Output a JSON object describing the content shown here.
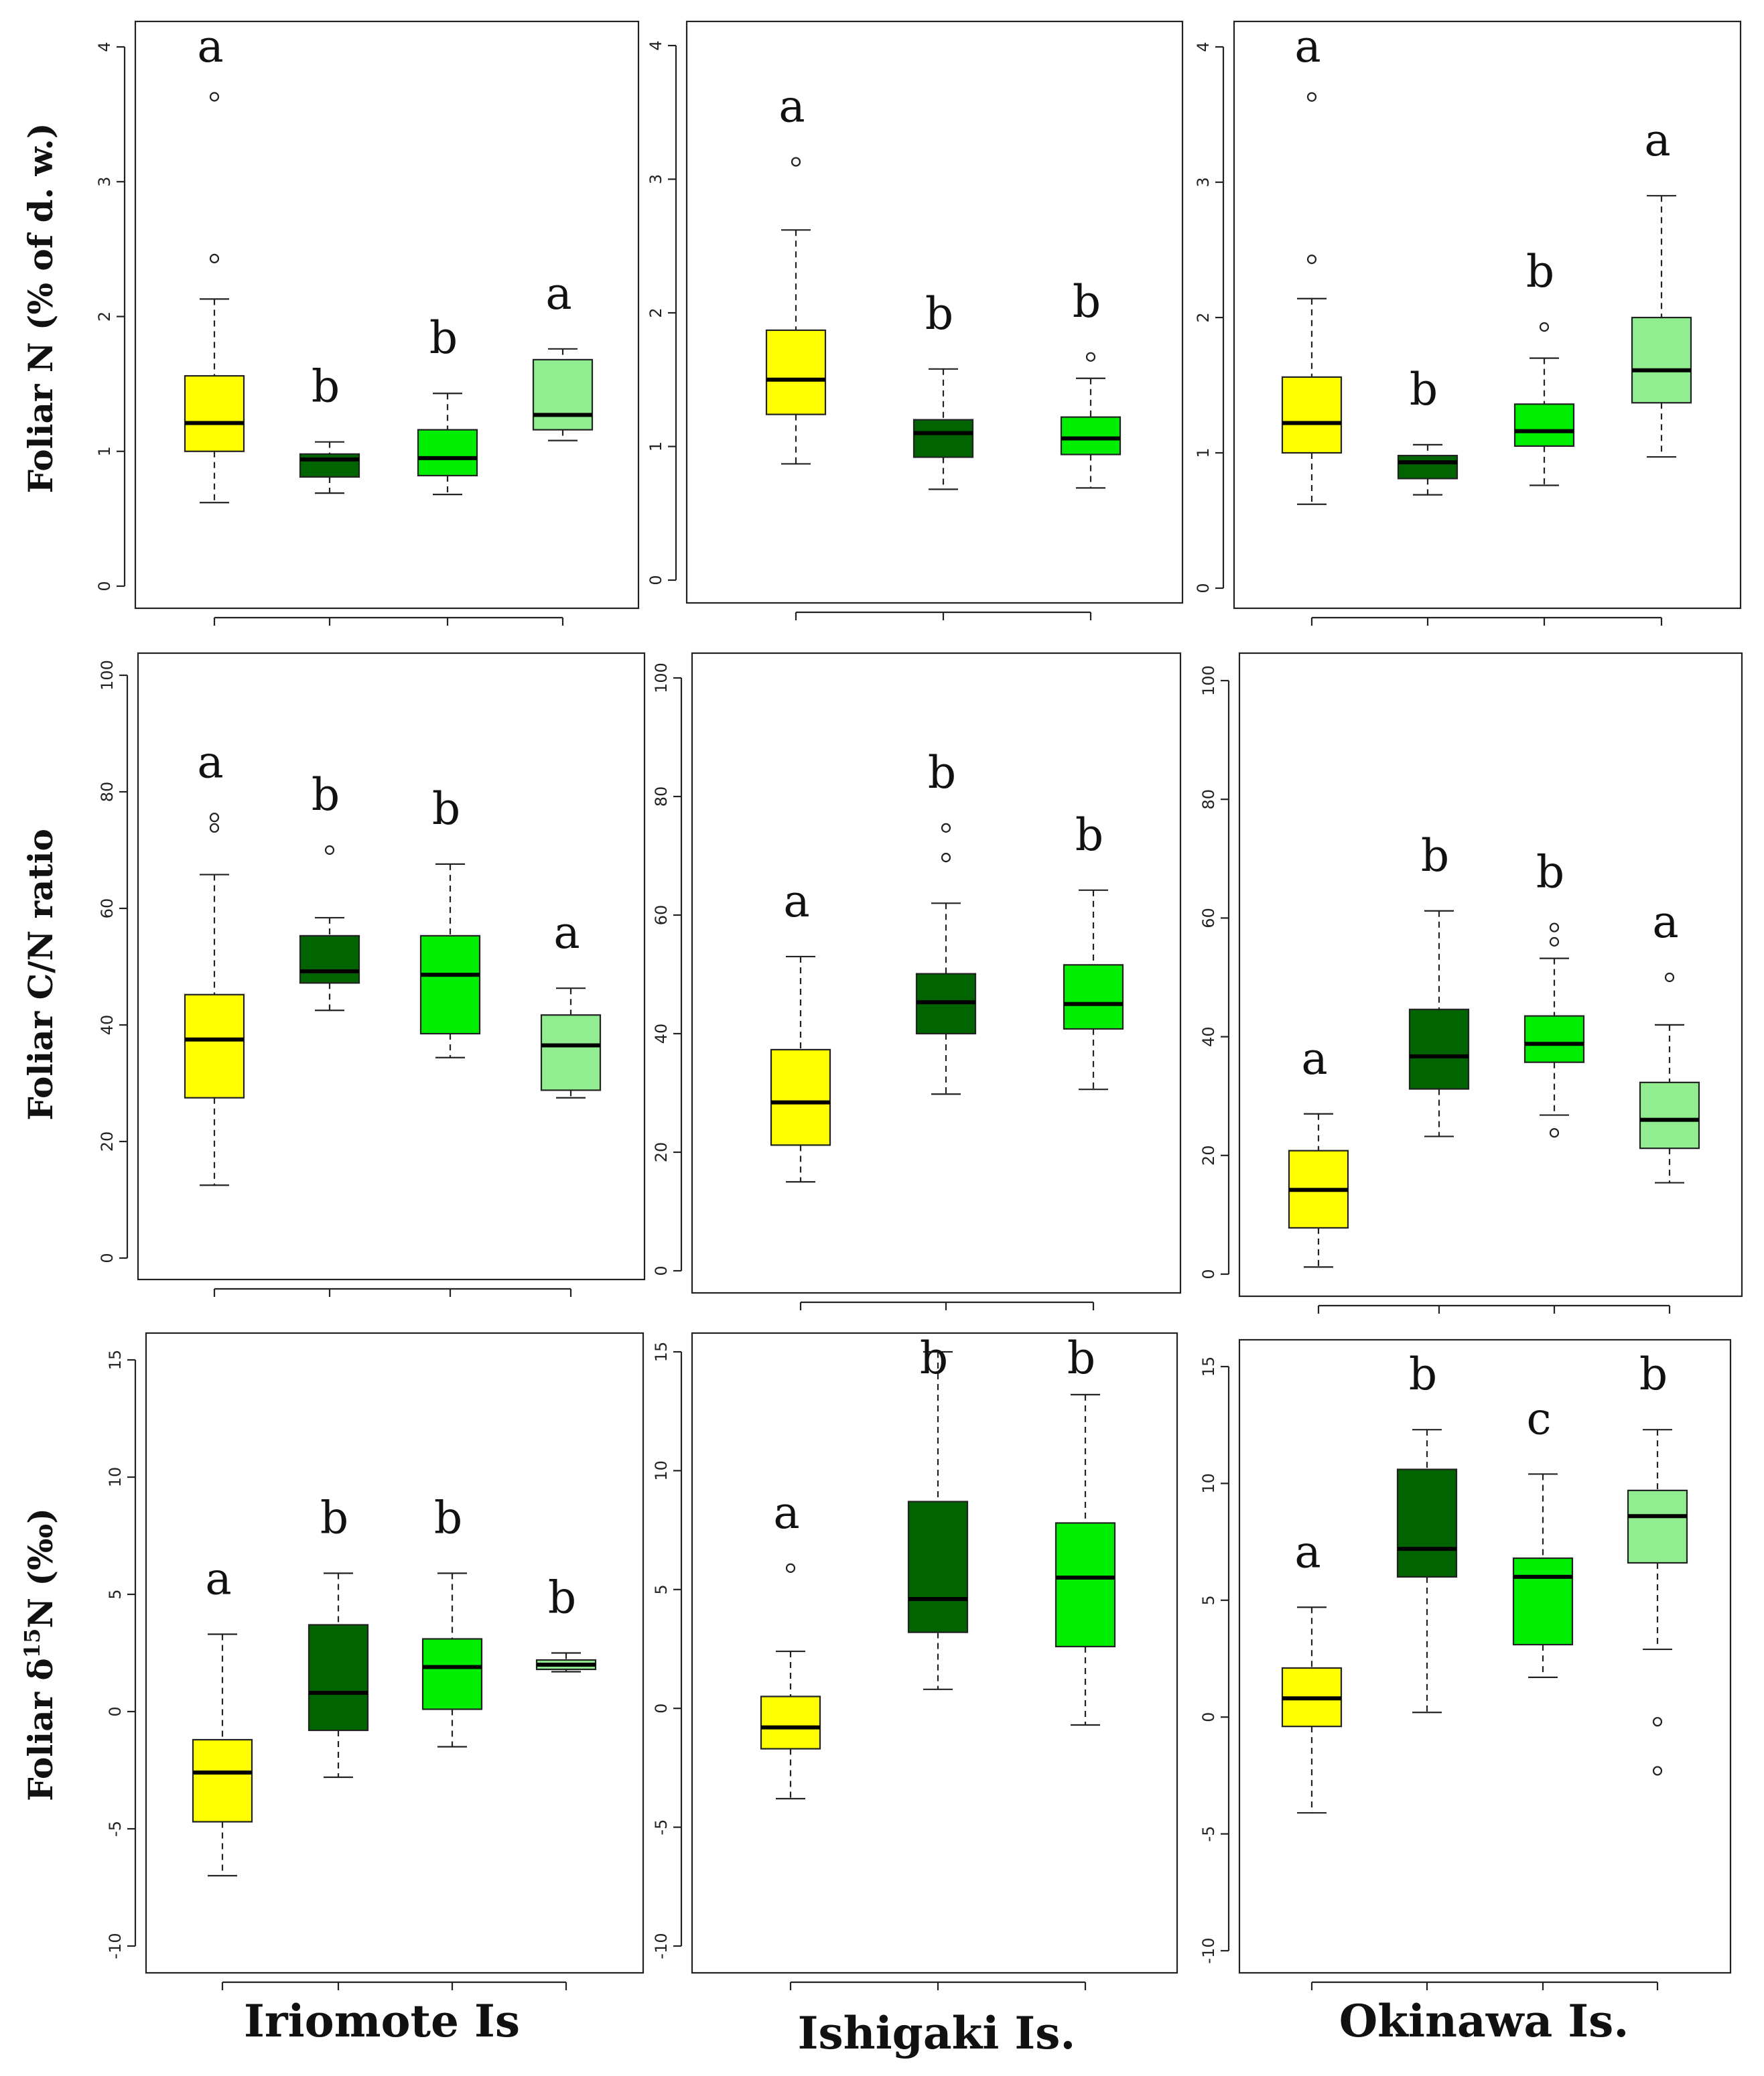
{
  "colors": {
    "yellow": "#ffff00",
    "dark_green": "#006400",
    "bright_green": "#00ee00",
    "light_green": "#90ee90"
  },
  "row_labels": [
    "Foliar N (% of d. w.)",
    "Foliar C/N ratio",
    "Foliar δ15N (‰)"
  ],
  "column_labels": [
    "Iriomote Is",
    "Ishigaki Is.",
    "Okinawa Is."
  ],
  "chart_data": [
    {
      "type": "box",
      "row": 0,
      "col": 0,
      "ylim": [
        0,
        4
      ],
      "yticks": [
        0,
        1,
        2,
        3,
        4
      ],
      "boxes": [
        {
          "color": "yellow",
          "min": 0.62,
          "q1": 1.0,
          "median": 1.21,
          "q3": 1.56,
          "max": 2.13,
          "outliers": [
            2.43,
            3.63
          ],
          "letter": "a"
        },
        {
          "color": "dark_green",
          "min": 0.69,
          "q1": 0.81,
          "median": 0.94,
          "q3": 0.98,
          "max": 1.07,
          "outliers": [],
          "letter": "b"
        },
        {
          "color": "bright_green",
          "min": 0.68,
          "q1": 0.82,
          "median": 0.95,
          "q3": 1.16,
          "max": 1.43,
          "outliers": [],
          "letter": "b"
        },
        {
          "color": "light_green",
          "min": 1.08,
          "q1": 1.16,
          "median": 1.27,
          "q3": 1.68,
          "max": 1.76,
          "outliers": [],
          "letter": "a"
        }
      ]
    },
    {
      "type": "box",
      "row": 0,
      "col": 1,
      "ylim": [
        0,
        4
      ],
      "yticks": [
        0,
        1,
        2,
        3,
        4
      ],
      "boxes": [
        {
          "color": "yellow",
          "min": 0.87,
          "q1": 1.24,
          "median": 1.5,
          "q3": 1.87,
          "max": 2.62,
          "outliers": [
            3.13
          ],
          "letter": "a"
        },
        {
          "color": "dark_green",
          "min": 0.68,
          "q1": 0.92,
          "median": 1.1,
          "q3": 1.2,
          "max": 1.58,
          "outliers": [],
          "letter": "b"
        },
        {
          "color": "bright_green",
          "min": 0.69,
          "q1": 0.94,
          "median": 1.06,
          "q3": 1.22,
          "max": 1.51,
          "outliers": [
            1.67
          ],
          "letter": "b"
        }
      ]
    },
    {
      "type": "box",
      "row": 0,
      "col": 2,
      "ylim": [
        0,
        4
      ],
      "yticks": [
        0,
        1,
        2,
        3,
        4
      ],
      "boxes": [
        {
          "color": "yellow",
          "min": 0.62,
          "q1": 1.0,
          "median": 1.22,
          "q3": 1.56,
          "max": 2.14,
          "outliers": [
            2.43,
            3.63
          ],
          "letter": "a"
        },
        {
          "color": "dark_green",
          "min": 0.69,
          "q1": 0.81,
          "median": 0.93,
          "q3": 0.98,
          "max": 1.06,
          "outliers": [],
          "letter": "b"
        },
        {
          "color": "bright_green",
          "min": 0.76,
          "q1": 1.05,
          "median": 1.16,
          "q3": 1.36,
          "max": 1.7,
          "outliers": [
            1.93
          ],
          "letter": "b"
        },
        {
          "color": "light_green",
          "min": 0.97,
          "q1": 1.37,
          "median": 1.61,
          "q3": 2.0,
          "max": 2.9,
          "outliers": [],
          "letter": "a"
        }
      ]
    },
    {
      "type": "box",
      "row": 1,
      "col": 0,
      "ylim": [
        0,
        100
      ],
      "yticks": [
        0,
        20,
        40,
        60,
        80,
        100
      ],
      "boxes": [
        {
          "color": "yellow",
          "min": 12.5,
          "q1": 27.5,
          "median": 37.5,
          "q3": 45.2,
          "max": 65.8,
          "outliers": [
            73.8,
            75.6
          ],
          "letter": "a"
        },
        {
          "color": "dark_green",
          "min": 42.5,
          "q1": 47.2,
          "median": 49.2,
          "q3": 55.3,
          "max": 58.4,
          "outliers": [
            70.0
          ],
          "letter": "b"
        },
        {
          "color": "bright_green",
          "min": 34.4,
          "q1": 38.5,
          "median": 48.6,
          "q3": 55.3,
          "max": 67.6,
          "outliers": [],
          "letter": "b"
        },
        {
          "color": "light_green",
          "min": 27.5,
          "q1": 28.8,
          "median": 36.5,
          "q3": 41.7,
          "max": 46.3,
          "outliers": [],
          "letter": "a"
        }
      ]
    },
    {
      "type": "box",
      "row": 1,
      "col": 1,
      "ylim": [
        0,
        100
      ],
      "yticks": [
        0,
        20,
        40,
        60,
        80,
        100
      ],
      "boxes": [
        {
          "color": "yellow",
          "min": 15.0,
          "q1": 21.2,
          "median": 28.4,
          "q3": 37.3,
          "max": 53.0,
          "outliers": [],
          "letter": "a"
        },
        {
          "color": "dark_green",
          "min": 29.8,
          "q1": 40.0,
          "median": 45.3,
          "q3": 50.1,
          "max": 62.0,
          "outliers": [
            69.7,
            74.7
          ],
          "letter": "b"
        },
        {
          "color": "bright_green",
          "min": 30.6,
          "q1": 40.8,
          "median": 45.0,
          "q3": 51.6,
          "max": 64.2,
          "outliers": [],
          "letter": "b"
        }
      ]
    },
    {
      "type": "box",
      "row": 1,
      "col": 2,
      "ylim": [
        0,
        100
      ],
      "yticks": [
        0,
        20,
        40,
        60,
        80,
        100
      ],
      "boxes": [
        {
          "color": "yellow",
          "min": 1.2,
          "q1": 7.8,
          "median": 14.2,
          "q3": 20.8,
          "max": 27.0,
          "outliers": [],
          "letter": "a"
        },
        {
          "color": "dark_green",
          "min": 23.2,
          "q1": 31.2,
          "median": 36.7,
          "q3": 44.6,
          "max": 61.2,
          "outliers": [],
          "letter": "b"
        },
        {
          "color": "bright_green",
          "min": 26.8,
          "q1": 35.7,
          "median": 38.8,
          "q3": 43.5,
          "max": 53.2,
          "outliers": [
            23.8,
            56.0,
            58.4
          ],
          "letter": "b"
        },
        {
          "color": "light_green",
          "min": 15.4,
          "q1": 21.2,
          "median": 26.0,
          "q3": 32.3,
          "max": 42.0,
          "outliers": [
            50.0
          ],
          "letter": "a"
        }
      ]
    },
    {
      "type": "box",
      "row": 2,
      "col": 0,
      "ylim": [
        -10,
        15
      ],
      "yticks": [
        -10,
        -5,
        0,
        5,
        10,
        15
      ],
      "boxes": [
        {
          "color": "yellow",
          "min": -7.0,
          "q1": -4.7,
          "median": -2.6,
          "q3": -1.2,
          "max": 3.3,
          "outliers": [],
          "letter": "a"
        },
        {
          "color": "dark_green",
          "min": -2.8,
          "q1": -0.8,
          "median": 0.8,
          "q3": 3.7,
          "max": 5.9,
          "outliers": [],
          "letter": "b"
        },
        {
          "color": "bright_green",
          "min": -1.5,
          "q1": 0.1,
          "median": 1.9,
          "q3": 3.1,
          "max": 5.9,
          "outliers": [],
          "letter": "b"
        },
        {
          "color": "light_green",
          "min": 1.7,
          "q1": 1.8,
          "median": 2.0,
          "q3": 2.2,
          "max": 2.5,
          "outliers": [],
          "letter": "b"
        }
      ]
    },
    {
      "type": "box",
      "row": 2,
      "col": 1,
      "ylim": [
        -10,
        15
      ],
      "yticks": [
        -10,
        -5,
        0,
        5,
        10,
        15
      ],
      "boxes": [
        {
          "color": "yellow",
          "min": -3.8,
          "q1": -1.7,
          "median": -0.8,
          "q3": 0.5,
          "max": 2.4,
          "outliers": [
            5.9
          ],
          "letter": "a"
        },
        {
          "color": "dark_green",
          "min": 0.8,
          "q1": 3.2,
          "median": 4.6,
          "q3": 8.7,
          "max": 15.0,
          "outliers": [],
          "letter": "b"
        },
        {
          "color": "bright_green",
          "min": -0.7,
          "q1": 2.6,
          "median": 5.5,
          "q3": 7.8,
          "max": 13.2,
          "outliers": [],
          "letter": "b"
        }
      ]
    },
    {
      "type": "box",
      "row": 2,
      "col": 2,
      "ylim": [
        -10,
        15
      ],
      "yticks": [
        -10,
        -5,
        0,
        5,
        10,
        15
      ],
      "boxes": [
        {
          "color": "yellow",
          "min": -4.1,
          "q1": -0.4,
          "median": 0.8,
          "q3": 2.1,
          "max": 4.7,
          "outliers": [],
          "letter": "a"
        },
        {
          "color": "dark_green",
          "min": 0.2,
          "q1": 6.0,
          "median": 7.2,
          "q3": 10.6,
          "max": 12.3,
          "outliers": [],
          "letter": "b"
        },
        {
          "color": "bright_green",
          "min": 1.7,
          "q1": 3.1,
          "median": 6.0,
          "q3": 6.8,
          "max": 10.4,
          "outliers": [],
          "letter": "c"
        },
        {
          "color": "light_green",
          "min": 2.9,
          "q1": 6.6,
          "median": 8.6,
          "q3": 9.7,
          "max": 12.3,
          "outliers": [
            -0.2,
            -2.3
          ],
          "letter": "b"
        }
      ]
    }
  ]
}
